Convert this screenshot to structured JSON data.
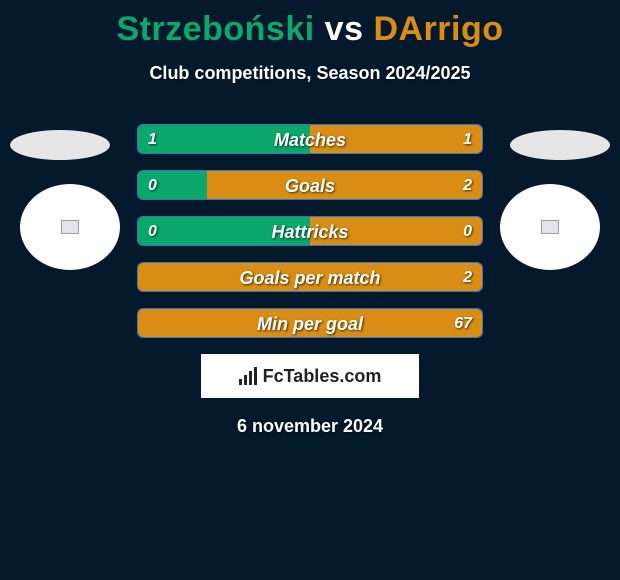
{
  "title": {
    "player1": "Strzeboński",
    "vs": "vs",
    "player2": "DArrigo",
    "color_p1": "#0aa86a",
    "color_vs": "#ffffff",
    "color_p2": "#d98d14"
  },
  "subtitle": "Club competitions, Season 2024/2025",
  "flag_left_color": "#e6e6e6",
  "flag_right_color": "#e6e6e6",
  "crest_left_bg": "#ffffff",
  "crest_right_bg": "#ffffff",
  "bar_defaults": {
    "bg": "#071d34",
    "border": "#2f78c2",
    "left_fill": "#0aa86a",
    "right_fill": "#d98d14",
    "height": 30,
    "radius": 6
  },
  "bars": [
    {
      "label": "Matches",
      "left_val": "1",
      "right_val": "1",
      "left_pct": 50,
      "right_pct": 50
    },
    {
      "label": "Goals",
      "left_val": "0",
      "right_val": "2",
      "left_pct": 20,
      "right_pct": 80
    },
    {
      "label": "Hattricks",
      "left_val": "0",
      "right_val": "0",
      "left_pct": 50,
      "right_pct": 50
    },
    {
      "label": "Goals per match",
      "left_val": "",
      "right_val": "2",
      "left_pct": 0,
      "right_pct": 100
    },
    {
      "label": "Min per goal",
      "left_val": "",
      "right_val": "67",
      "left_pct": 0,
      "right_pct": 100
    }
  ],
  "branding": "FcTables.com",
  "date": "6 november 2024",
  "background_color": "#05192d"
}
